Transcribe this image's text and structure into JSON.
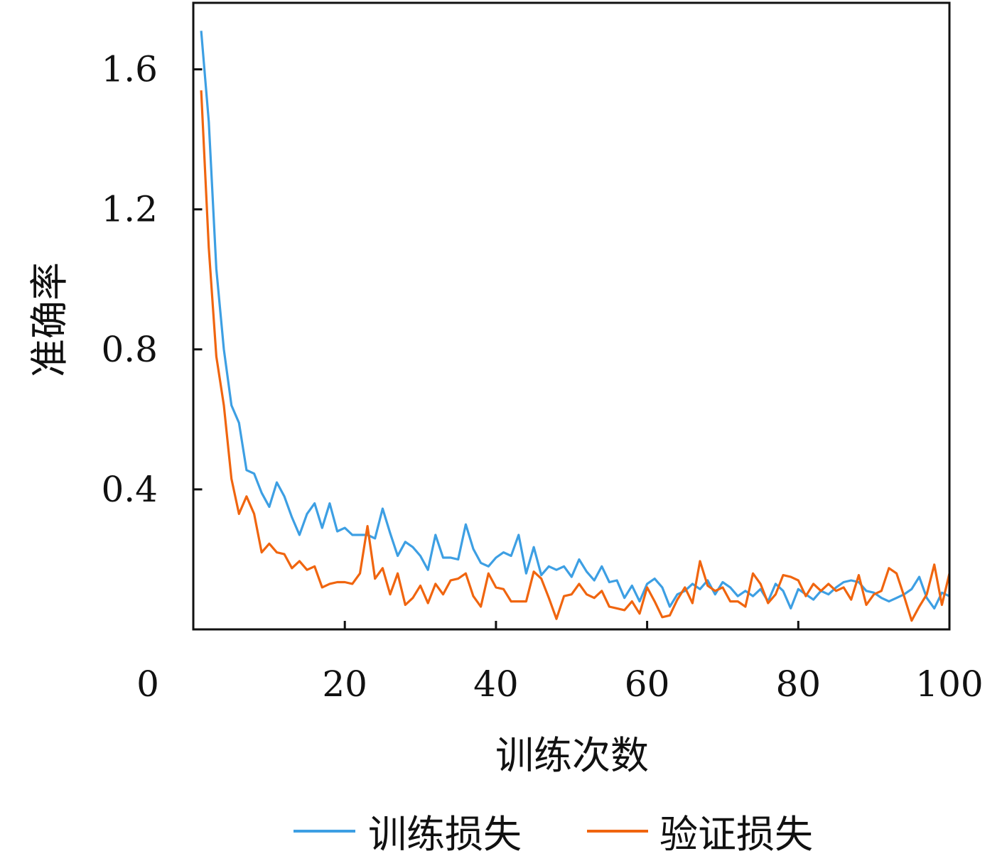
{
  "chart_data": {
    "type": "line",
    "title": "",
    "xlabel": "训练次数",
    "ylabel": "准确率",
    "xlim": [
      0,
      100
    ],
    "ylim": [
      0,
      1.79
    ],
    "xticks": [
      0,
      20,
      40,
      60,
      80,
      100
    ],
    "xtick_labels": [
      "0",
      "20",
      "40",
      "60",
      "80",
      "100"
    ],
    "yticks": [
      0.4,
      0.8,
      1.2,
      1.6
    ],
    "ytick_labels": [
      "0.4",
      "0.8",
      "1.2",
      "1.6"
    ],
    "grid": false,
    "legend_position": "bottom",
    "x": [
      1,
      2,
      3,
      4,
      5,
      6,
      7,
      8,
      9,
      10,
      11,
      12,
      13,
      14,
      15,
      16,
      17,
      18,
      19,
      20,
      21,
      22,
      23,
      24,
      25,
      26,
      27,
      28,
      29,
      30,
      31,
      32,
      33,
      34,
      35,
      36,
      37,
      38,
      39,
      40,
      41,
      42,
      43,
      44,
      45,
      46,
      47,
      48,
      49,
      50,
      51,
      52,
      53,
      54,
      55,
      56,
      57,
      58,
      59,
      60,
      61,
      62,
      63,
      64,
      65,
      66,
      67,
      68,
      69,
      70,
      71,
      72,
      73,
      74,
      75,
      76,
      77,
      78,
      79,
      80,
      81,
      82,
      83,
      84,
      85,
      86,
      87,
      88,
      89,
      90,
      91,
      92,
      93,
      94,
      95,
      96,
      97,
      98,
      99,
      100
    ],
    "series": [
      {
        "name": "训练损失",
        "color": "#3d9fe3",
        "values": [
          1.71,
          1.45,
          1.03,
          0.8,
          0.64,
          0.59,
          0.455,
          0.445,
          0.39,
          0.35,
          0.42,
          0.38,
          0.32,
          0.27,
          0.33,
          0.36,
          0.29,
          0.36,
          0.28,
          0.29,
          0.27,
          0.27,
          0.27,
          0.26,
          0.345,
          0.275,
          0.21,
          0.25,
          0.235,
          0.21,
          0.17,
          0.27,
          0.205,
          0.205,
          0.2,
          0.3,
          0.23,
          0.19,
          0.18,
          0.205,
          0.22,
          0.21,
          0.27,
          0.16,
          0.235,
          0.155,
          0.18,
          0.17,
          0.18,
          0.15,
          0.2,
          0.165,
          0.14,
          0.18,
          0.135,
          0.14,
          0.09,
          0.125,
          0.08,
          0.13,
          0.145,
          0.12,
          0.065,
          0.1,
          0.11,
          0.13,
          0.115,
          0.14,
          0.1,
          0.135,
          0.12,
          0.095,
          0.11,
          0.095,
          0.115,
          0.08,
          0.13,
          0.11,
          0.06,
          0.115,
          0.1,
          0.085,
          0.11,
          0.1,
          0.12,
          0.135,
          0.14,
          0.135,
          0.11,
          0.105,
          0.09,
          0.08,
          0.09,
          0.1,
          0.115,
          0.15,
          0.09,
          0.06,
          0.105,
          0.095
        ]
      },
      {
        "name": "验证损失",
        "color": "#f0650f",
        "values": [
          1.54,
          1.09,
          0.78,
          0.64,
          0.43,
          0.33,
          0.38,
          0.33,
          0.22,
          0.245,
          0.22,
          0.215,
          0.175,
          0.195,
          0.17,
          0.18,
          0.12,
          0.13,
          0.135,
          0.135,
          0.13,
          0.16,
          0.295,
          0.145,
          0.175,
          0.1,
          0.16,
          0.07,
          0.09,
          0.125,
          0.075,
          0.13,
          0.1,
          0.14,
          0.145,
          0.16,
          0.095,
          0.065,
          0.16,
          0.12,
          0.115,
          0.08,
          0.08,
          0.08,
          0.165,
          0.145,
          0.09,
          0.03,
          0.095,
          0.1,
          0.13,
          0.1,
          0.09,
          0.11,
          0.065,
          0.06,
          0.055,
          0.08,
          0.045,
          0.12,
          0.08,
          0.035,
          0.04,
          0.085,
          0.12,
          0.075,
          0.195,
          0.125,
          0.11,
          0.12,
          0.08,
          0.08,
          0.065,
          0.16,
          0.13,
          0.075,
          0.1,
          0.155,
          0.15,
          0.14,
          0.095,
          0.13,
          0.11,
          0.13,
          0.11,
          0.12,
          0.085,
          0.155,
          0.07,
          0.1,
          0.11,
          0.175,
          0.16,
          0.095,
          0.025,
          0.065,
          0.1,
          0.185,
          0.07,
          0.16
        ]
      }
    ]
  }
}
